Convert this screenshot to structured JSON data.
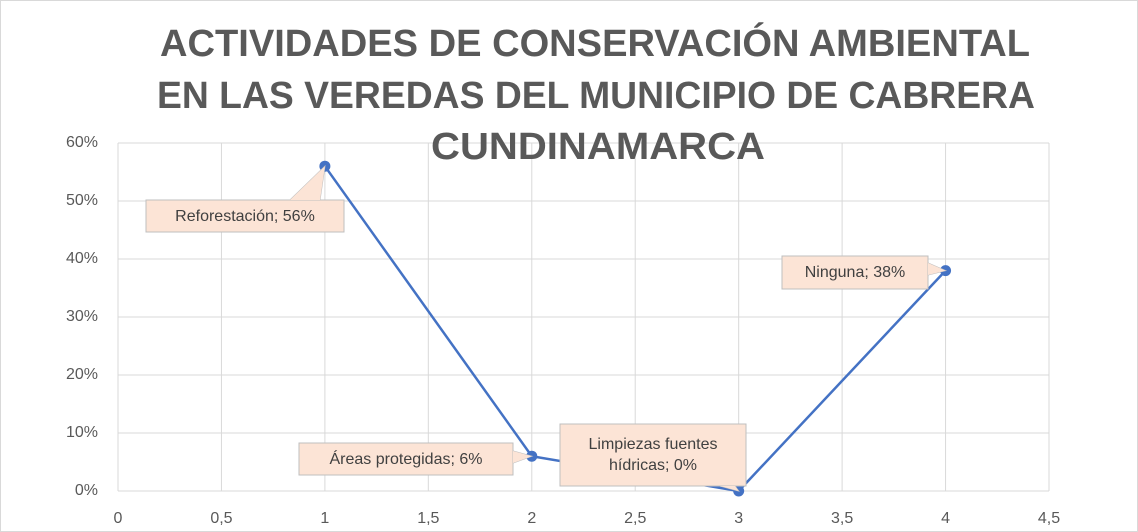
{
  "chart_data": {
    "type": "scatter",
    "title": [
      "ACTIVIDADES DE CONSERVACIÓN AMBIENTAL",
      "EN LAS VEREDAS DEL MUNICIPIO DE CABRERA",
      "CUNDINAMARCA"
    ],
    "x": [
      1,
      2,
      3,
      4
    ],
    "values": [
      56,
      6,
      0,
      38
    ],
    "value_labels": [
      "Reforestación; 56%",
      "Áreas protegidas; 6%",
      "Limpiezas fuentes hídricas; 0%",
      "Ninguna; 38%"
    ],
    "color": "#4472c4",
    "xlim": [
      0,
      4.5
    ],
    "xticks": [
      0,
      {
        "value": 0.5,
        "label": "0,5"
      },
      1,
      {
        "value": 1.5,
        "label": "1,5"
      },
      2,
      {
        "value": 2.5,
        "label": "2,5"
      },
      3,
      {
        "value": 3.5,
        "label": "3,5"
      },
      4,
      {
        "value": 4.5,
        "label": "4,5"
      }
    ],
    "ylim": [
      0,
      60
    ],
    "yticks": [
      {
        "value": 0,
        "label": "0%"
      },
      {
        "value": 10,
        "label": "10%"
      },
      {
        "value": 20,
        "label": "20%"
      },
      {
        "value": 30,
        "label": "30%"
      },
      {
        "value": 40,
        "label": "40%"
      },
      {
        "value": 50,
        "label": "50%"
      },
      {
        "value": 60,
        "label": "60%"
      }
    ],
    "grid": true
  }
}
